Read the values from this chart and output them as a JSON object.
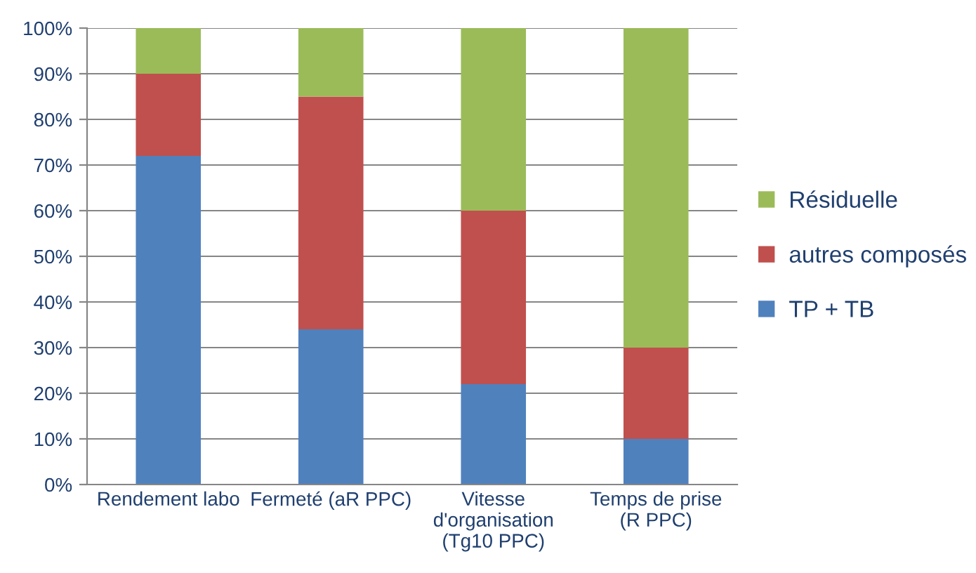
{
  "chart_data": {
    "type": "bar",
    "stacked": true,
    "categories": [
      "Rendement labo",
      "Fermeté (aR PPC)",
      "Vitesse\nd'organisation\n(Tg10 PPC)",
      "Temps de prise\n(R PPC)"
    ],
    "series": [
      {
        "name": "TP + TB",
        "color": "#4f81bd",
        "values": [
          72,
          34,
          22,
          10
        ]
      },
      {
        "name": "autres composés",
        "color": "#c0504d",
        "values": [
          18,
          51,
          38,
          20
        ]
      },
      {
        "name": "Résiduelle",
        "color": "#9bbb59",
        "values": [
          10,
          15,
          40,
          70
        ]
      }
    ],
    "ylim": [
      0,
      100
    ],
    "yticks": [
      {
        "value": 0,
        "label": "0%"
      },
      {
        "value": 10,
        "label": "10%"
      },
      {
        "value": 20,
        "label": "20%"
      },
      {
        "value": 30,
        "label": "30%"
      },
      {
        "value": 40,
        "label": "40%"
      },
      {
        "value": 50,
        "label": "50%"
      },
      {
        "value": 60,
        "label": "60%"
      },
      {
        "value": 70,
        "label": "70%"
      },
      {
        "value": 80,
        "label": "80%"
      },
      {
        "value": 90,
        "label": "90%"
      },
      {
        "value": 100,
        "label": "100%"
      }
    ],
    "grid": "y",
    "legend": "right"
  }
}
